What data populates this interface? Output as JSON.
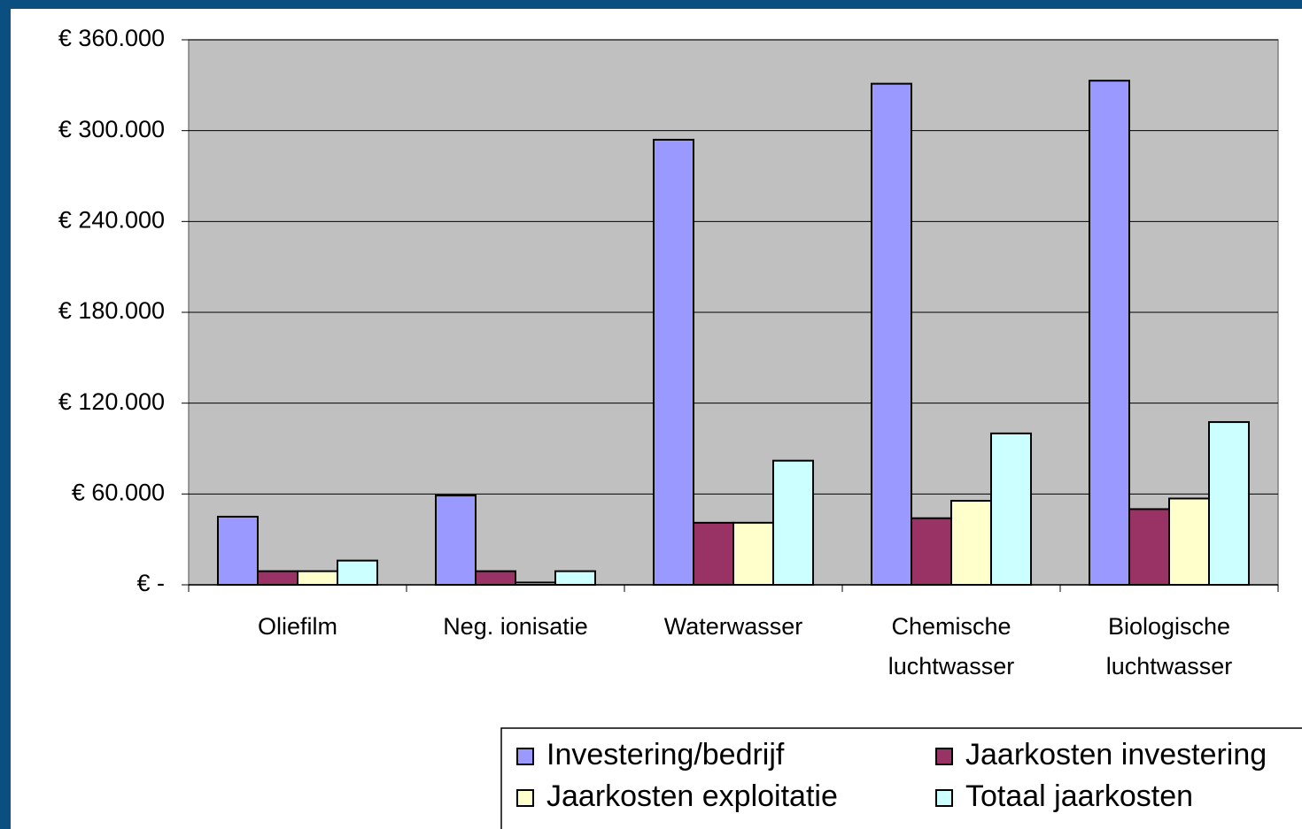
{
  "chart_data": {
    "type": "bar",
    "categories": [
      [
        "Oliefilm"
      ],
      [
        "Neg. ionisatie"
      ],
      [
        "Waterwasser"
      ],
      [
        "Chemische",
        "luchtwasser"
      ],
      [
        "Biologische",
        "luchtwasser"
      ]
    ],
    "series": [
      {
        "name": "Investering/bedrijf",
        "color": "#9999ff",
        "values": [
          45000,
          59000,
          294000,
          331000,
          333000
        ]
      },
      {
        "name": "Jaarkosten investering",
        "color": "#993366",
        "values": [
          9000,
          9000,
          41000,
          44000,
          50000
        ]
      },
      {
        "name": "Jaarkosten exploitatie",
        "color": "#ffffcc",
        "values": [
          9000,
          1500,
          41000,
          55500,
          57000
        ]
      },
      {
        "name": "Totaal jaarkosten",
        "color": "#ccffff",
        "values": [
          16000,
          9000,
          82000,
          100000,
          107500
        ]
      }
    ],
    "ylim": [
      0,
      360000
    ],
    "yticks": [
      {
        "value": 0,
        "label": "€ -"
      },
      {
        "value": 60000,
        "label": "€ 60.000"
      },
      {
        "value": 120000,
        "label": "€ 120.000"
      },
      {
        "value": 180000,
        "label": "€ 180.000"
      },
      {
        "value": 240000,
        "label": "€ 240.000"
      },
      {
        "value": 300000,
        "label": "€ 300.000"
      },
      {
        "value": 360000,
        "label": "€ 360.000"
      }
    ],
    "grid": true,
    "legend": "bottom",
    "plot_background": "#c0c0c0"
  }
}
